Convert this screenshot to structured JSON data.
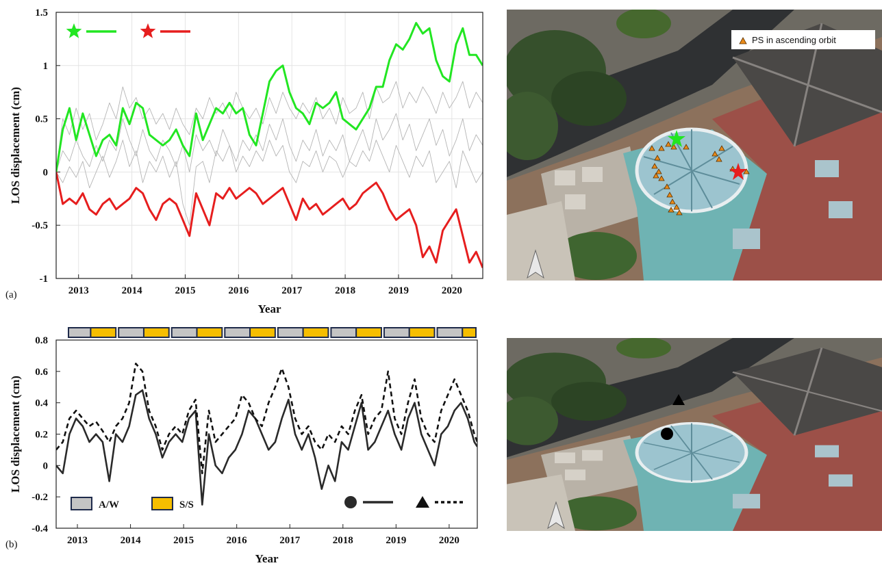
{
  "chart_data": [
    {
      "type": "line",
      "panel_label": "(a)",
      "xlabel": "Year",
      "ylabel": "LOS displacement (cm)",
      "xlim": [
        2012.58,
        2020.58
      ],
      "xticks": [
        2013,
        2014,
        2015,
        2016,
        2017,
        2018,
        2019,
        2020
      ],
      "ylim": [
        -1,
        1.5
      ],
      "yticks": [
        -1,
        -0.5,
        0,
        0.5,
        1,
        1.5
      ],
      "grid": true,
      "legend": "upper left",
      "x": [
        2012.58,
        2012.705,
        2012.83,
        2012.955,
        2013.08,
        2013.205,
        2013.33,
        2013.455,
        2013.58,
        2013.705,
        2013.83,
        2013.955,
        2014.08,
        2014.205,
        2014.33,
        2014.455,
        2014.58,
        2014.705,
        2014.83,
        2014.955,
        2015.08,
        2015.205,
        2015.33,
        2015.455,
        2015.58,
        2015.705,
        2015.83,
        2015.955,
        2016.08,
        2016.205,
        2016.33,
        2016.455,
        2016.58,
        2016.705,
        2016.83,
        2016.955,
        2017.08,
        2017.205,
        2017.33,
        2017.455,
        2017.58,
        2017.705,
        2017.83,
        2017.955,
        2018.08,
        2018.205,
        2018.33,
        2018.455,
        2018.58,
        2018.705,
        2018.83,
        2018.955,
        2019.08,
        2019.205,
        2019.33,
        2019.455,
        2019.58,
        2019.705,
        2019.83,
        2019.955,
        2020.08,
        2020.205,
        2020.33,
        2020.455,
        2020.58
      ],
      "series": [
        {
          "color": "#b4b4b4",
          "values": [
            0,
            0.2,
            0.1,
            0.3,
            0.15,
            0.05,
            0.25,
            0.1,
            0.3,
            0.2,
            0.5,
            0.3,
            0.15,
            0.4,
            0.2,
            0.1,
            0.3,
            0.2,
            0.05,
            0.25,
            0.0,
            0.35,
            0.2,
            0.3,
            0.15,
            0.4,
            0.25,
            0.1,
            0.3,
            0.2,
            0.35,
            0.2,
            0.45,
            0.3,
            0.5,
            0.25,
            0.1,
            0.3,
            0.2,
            0.4,
            0.15,
            0.3,
            0.2,
            0.35,
            0.1,
            0.25,
            0.4,
            0.2,
            0.5,
            0.3,
            0.4,
            0.55,
            0.3,
            0.45,
            0.2,
            0.35,
            0.5,
            0.25,
            0.4,
            0.15,
            0.3,
            0.5,
            0.2,
            0.35,
            0.25
          ]
        },
        {
          "color": "#b4b4b4",
          "values": [
            0,
            -0.1,
            0.05,
            -0.05,
            0.1,
            -0.15,
            0.0,
            0.15,
            -0.05,
            0.1,
            0.3,
            0.05,
            0.2,
            -0.1,
            0.1,
            0.0,
            0.15,
            -0.05,
            0.1,
            -0.3,
            -0.5,
            0.05,
            0.1,
            -0.1,
            0.2,
            0.1,
            0.25,
            0.0,
            0.15,
            0.05,
            0.2,
            0.1,
            0.3,
            0.15,
            0.25,
            0.0,
            -0.1,
            0.1,
            0.05,
            0.2,
            0.0,
            0.15,
            0.1,
            -0.05,
            0.1,
            0.05,
            0.2,
            0.1,
            0.3,
            0.15,
            0.0,
            0.25,
            0.1,
            -0.05,
            0.15,
            0.05,
            0.2,
            -0.1,
            0.0,
            0.1,
            -0.15,
            0.2,
            0.05,
            -0.1,
            0.0
          ]
        },
        {
          "color": "#b4b4b4",
          "values": [
            0,
            0.5,
            0.35,
            0.6,
            0.4,
            0.55,
            0.3,
            0.45,
            0.65,
            0.5,
            0.8,
            0.6,
            0.7,
            0.5,
            0.6,
            0.45,
            0.55,
            0.4,
            0.6,
            0.45,
            0.35,
            0.6,
            0.5,
            0.7,
            0.55,
            0.65,
            0.5,
            0.75,
            0.6,
            0.5,
            0.6,
            0.45,
            0.7,
            0.55,
            0.75,
            0.6,
            0.5,
            0.65,
            0.55,
            0.7,
            0.5,
            0.6,
            0.45,
            0.7,
            0.55,
            0.6,
            0.75,
            0.5,
            0.8,
            0.65,
            0.7,
            0.85,
            0.6,
            0.75,
            0.65,
            0.8,
            0.7,
            0.55,
            0.75,
            0.6,
            0.7,
            0.85,
            0.6,
            0.75,
            0.65
          ]
        },
        {
          "color": "#22e622",
          "marker": "star",
          "values": [
            0,
            0.4,
            0.6,
            0.3,
            0.55,
            0.35,
            0.15,
            0.3,
            0.35,
            0.25,
            0.6,
            0.45,
            0.65,
            0.6,
            0.35,
            0.3,
            0.25,
            0.3,
            0.4,
            0.25,
            0.15,
            0.55,
            0.3,
            0.45,
            0.6,
            0.55,
            0.65,
            0.55,
            0.6,
            0.35,
            0.25,
            0.55,
            0.85,
            0.95,
            1.0,
            0.75,
            0.6,
            0.55,
            0.45,
            0.65,
            0.6,
            0.65,
            0.75,
            0.5,
            0.45,
            0.4,
            0.5,
            0.6,
            0.8,
            0.8,
            1.05,
            1.2,
            1.15,
            1.25,
            1.4,
            1.3,
            1.35,
            1.05,
            0.9,
            0.85,
            1.2,
            1.35,
            1.1,
            1.1,
            1.0
          ]
        },
        {
          "color": "#e61e1e",
          "marker": "star",
          "values": [
            0,
            -0.3,
            -0.25,
            -0.3,
            -0.2,
            -0.35,
            -0.4,
            -0.3,
            -0.25,
            -0.35,
            -0.3,
            -0.25,
            -0.15,
            -0.2,
            -0.35,
            -0.45,
            -0.3,
            -0.25,
            -0.3,
            -0.45,
            -0.6,
            -0.2,
            -0.35,
            -0.5,
            -0.2,
            -0.25,
            -0.15,
            -0.25,
            -0.2,
            -0.15,
            -0.2,
            -0.3,
            -0.25,
            -0.2,
            -0.15,
            -0.3,
            -0.45,
            -0.25,
            -0.35,
            -0.3,
            -0.4,
            -0.35,
            -0.3,
            -0.25,
            -0.35,
            -0.3,
            -0.2,
            -0.15,
            -0.1,
            -0.2,
            -0.35,
            -0.45,
            -0.4,
            -0.35,
            -0.5,
            -0.8,
            -0.7,
            -0.85,
            -0.55,
            -0.45,
            -0.35,
            -0.6,
            -0.85,
            -0.75,
            -0.9
          ]
        }
      ]
    },
    {
      "type": "line",
      "panel_label": "(b)",
      "xlabel": "Year",
      "ylabel": "LOS displacement (cm)",
      "xlim": [
        2012.6,
        2020.53
      ],
      "xticks": [
        2013,
        2014,
        2015,
        2016,
        2017,
        2018,
        2019,
        2020
      ],
      "ylim": [
        -0.4,
        0.8
      ],
      "yticks": [
        -0.4,
        -0.2,
        0,
        0.2,
        0.4,
        0.6,
        0.8
      ],
      "grid": false,
      "legend": "lower right",
      "season_legend": [
        {
          "label": "A/W",
          "color": "#c4c4c4"
        },
        {
          "label": "S/S",
          "color": "#f6be00"
        }
      ],
      "x": [
        2012.6,
        2012.725,
        2012.85,
        2012.975,
        2013.1,
        2013.225,
        2013.35,
        2013.475,
        2013.6,
        2013.725,
        2013.85,
        2013.975,
        2014.1,
        2014.225,
        2014.35,
        2014.475,
        2014.6,
        2014.725,
        2014.85,
        2014.975,
        2015.1,
        2015.225,
        2015.35,
        2015.475,
        2015.6,
        2015.725,
        2015.85,
        2015.975,
        2016.1,
        2016.225,
        2016.35,
        2016.475,
        2016.6,
        2016.725,
        2016.85,
        2016.975,
        2017.1,
        2017.225,
        2017.35,
        2017.475,
        2017.6,
        2017.725,
        2017.85,
        2017.975,
        2018.1,
        2018.225,
        2018.35,
        2018.475,
        2018.6,
        2018.725,
        2018.85,
        2018.975,
        2019.1,
        2019.225,
        2019.35,
        2019.475,
        2019.6,
        2019.725,
        2019.85,
        2019.975,
        2020.1,
        2020.225,
        2020.35,
        2020.475,
        2020.53
      ],
      "series": [
        {
          "color": "#2a2a2a",
          "marker": "circle",
          "dash": false,
          "values": [
            0,
            -0.05,
            0.2,
            0.3,
            0.25,
            0.15,
            0.2,
            0.15,
            -0.1,
            0.2,
            0.15,
            0.25,
            0.45,
            0.48,
            0.3,
            0.2,
            0.05,
            0.15,
            0.2,
            0.15,
            0.3,
            0.35,
            -0.25,
            0.2,
            0.0,
            -0.05,
            0.05,
            0.1,
            0.2,
            0.35,
            0.3,
            0.2,
            0.1,
            0.15,
            0.3,
            0.42,
            0.2,
            0.1,
            0.2,
            0.05,
            -0.15,
            0.0,
            -0.1,
            0.15,
            0.1,
            0.25,
            0.4,
            0.1,
            0.15,
            0.25,
            0.35,
            0.2,
            0.1,
            0.3,
            0.4,
            0.2,
            0.1,
            0.0,
            0.2,
            0.25,
            0.35,
            0.4,
            0.3,
            0.15,
            0.12
          ]
        },
        {
          "color": "#111111",
          "marker": "triangle",
          "dash": true,
          "values": [
            0.1,
            0.15,
            0.3,
            0.35,
            0.3,
            0.25,
            0.28,
            0.22,
            0.15,
            0.25,
            0.3,
            0.4,
            0.65,
            0.6,
            0.35,
            0.25,
            0.1,
            0.2,
            0.25,
            0.2,
            0.35,
            0.42,
            -0.05,
            0.35,
            0.15,
            0.2,
            0.25,
            0.3,
            0.45,
            0.4,
            0.3,
            0.25,
            0.4,
            0.5,
            0.62,
            0.5,
            0.3,
            0.2,
            0.25,
            0.15,
            0.1,
            0.2,
            0.15,
            0.25,
            0.2,
            0.35,
            0.45,
            0.2,
            0.3,
            0.35,
            0.6,
            0.3,
            0.2,
            0.4,
            0.55,
            0.3,
            0.2,
            0.15,
            0.35,
            0.45,
            0.55,
            0.45,
            0.35,
            0.2,
            0.15
          ]
        }
      ]
    }
  ],
  "map_legend": "PS in ascending orbit"
}
